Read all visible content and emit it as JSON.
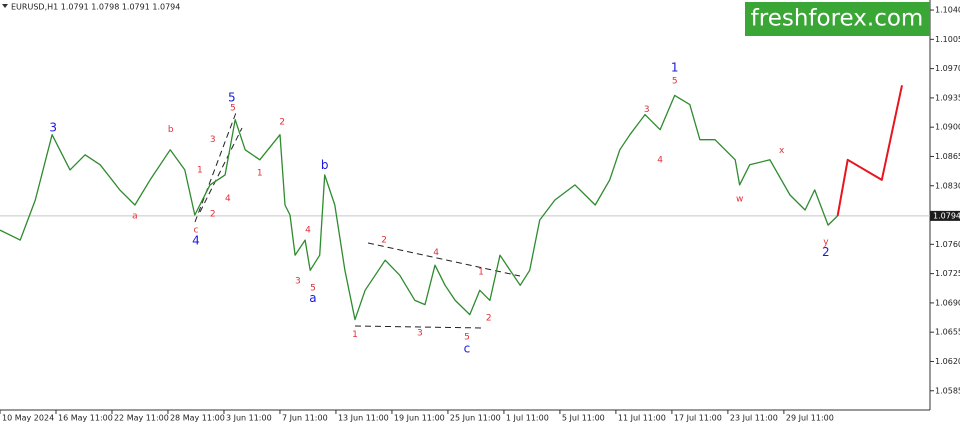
{
  "header": "EURUSD,H1  1.0791 1.0798 1.0791 1.0794",
  "logo": "freshforex.com",
  "chart_data": {
    "type": "line",
    "xlim": [
      0,
      16.61
    ],
    "ylim": [
      1.0562,
      1.1052
    ],
    "xticks": [
      {
        "value": 0,
        "label": "10 May 2024"
      },
      {
        "value": 1,
        "label": "16 May 11:00"
      },
      {
        "value": 2,
        "label": "22 May 11:00"
      },
      {
        "value": 3,
        "label": "28 May 11:00"
      },
      {
        "value": 4,
        "label": "3 Jun 11:00"
      },
      {
        "value": 5,
        "label": "7 Jun 11:00"
      },
      {
        "value": 6,
        "label": "13 Jun 11:00"
      },
      {
        "value": 7,
        "label": "19 Jun 11:00"
      },
      {
        "value": 8,
        "label": "25 Jun 11:00"
      },
      {
        "value": 9,
        "label": "1 Jul 11:00"
      },
      {
        "value": 10,
        "label": "5 Jul 11:00"
      },
      {
        "value": 11,
        "label": "11 Jul 11:00"
      },
      {
        "value": 12,
        "label": "17 Jul 11:00"
      },
      {
        "value": 13,
        "label": "23 Jul 11:00"
      },
      {
        "value": 14,
        "label": "29 Jul 11:00"
      }
    ],
    "yticks": [
      {
        "value": 1.104,
        "label": "1.1040"
      },
      {
        "value": 1.1005,
        "label": "1.1005"
      },
      {
        "value": 1.097,
        "label": "1.0970"
      },
      {
        "value": 1.0935,
        "label": "1.0935"
      },
      {
        "value": 1.09,
        "label": "1.0900"
      },
      {
        "value": 1.0865,
        "label": "1.0865"
      },
      {
        "value": 1.083,
        "label": "1.0830"
      },
      {
        "value": 1.076,
        "label": "1.0760"
      },
      {
        "value": 1.0725,
        "label": "1.0725"
      },
      {
        "value": 1.069,
        "label": "1.0690"
      },
      {
        "value": 1.0655,
        "label": "1.0655"
      },
      {
        "value": 1.062,
        "label": "1.0620"
      },
      {
        "value": 1.0585,
        "label": "1.0585"
      }
    ],
    "last": {
      "value": 1.0794,
      "label": "1.0794"
    },
    "series": [
      {
        "color": "#2e8b2e",
        "x": [
          0,
          0.36,
          0.63,
          0.93,
          1.25,
          1.52,
          1.79,
          2.14,
          2.41,
          2.68,
          3.04,
          3.3,
          3.48,
          3.75,
          4.02,
          4.2,
          4.38,
          4.64,
          5.0,
          5.09,
          5.18,
          5.27,
          5.45,
          5.54,
          5.71,
          5.8,
          5.98,
          6.16,
          6.34,
          6.52,
          6.88,
          7.14,
          7.41,
          7.59,
          7.77,
          7.95,
          8.13,
          8.39,
          8.57,
          8.75,
          8.93,
          9.11,
          9.29,
          9.46,
          9.64,
          9.91,
          10.27,
          10.63,
          10.89,
          11.07,
          11.25,
          11.52,
          11.79,
          12.05,
          12.32,
          12.5,
          12.77,
          13.13,
          13.21,
          13.39,
          13.75,
          14.11,
          14.38,
          14.55,
          14.79,
          14.96
        ],
        "values": [
          1.0777,
          1.0765,
          1.0813,
          1.0891,
          1.0849,
          1.0867,
          1.0855,
          1.0825,
          1.0807,
          1.0837,
          1.0873,
          1.0849,
          1.0795,
          1.0831,
          1.0843,
          1.0909,
          1.0873,
          1.0861,
          1.0891,
          1.0807,
          1.0795,
          1.0747,
          1.0765,
          1.0729,
          1.0747,
          1.0843,
          1.0807,
          1.0729,
          1.067,
          1.0705,
          1.0741,
          1.0723,
          1.0693,
          1.0688,
          1.0735,
          1.0711,
          1.0693,
          1.0676,
          1.0705,
          1.0693,
          1.0747,
          1.0729,
          1.0711,
          1.0729,
          1.0789,
          1.0813,
          1.0831,
          1.0807,
          1.0837,
          1.0873,
          1.0891,
          1.0915,
          1.0897,
          1.0938,
          1.0927,
          1.0885,
          1.0885,
          1.0861,
          1.0831,
          1.0855,
          1.0861,
          1.0819,
          1.0801,
          1.0825,
          1.0783,
          1.0794
        ]
      },
      {
        "color": "#e8141e",
        "x": [
          14.96,
          15.14,
          15.75,
          16.11
        ],
        "values": [
          1.0794,
          1.0861,
          1.0837,
          1.095
        ]
      }
    ],
    "annotations": [
      {
        "text": "3",
        "x": 0.95,
        "y": 1.0899,
        "color": "#1a1adc"
      },
      {
        "text": "b",
        "x": 3.05,
        "y": 1.0897,
        "color": "#e0303a"
      },
      {
        "text": "a",
        "x": 2.41,
        "y": 1.0794,
        "color": "#e0303a"
      },
      {
        "text": "5",
        "x": 4.14,
        "y": 1.0935,
        "color": "#1a1adc"
      },
      {
        "text": "5",
        "x": 4.16,
        "y": 1.0923,
        "color": "#e0303a"
      },
      {
        "text": "3",
        "x": 3.8,
        "y": 1.0885,
        "color": "#e0303a"
      },
      {
        "text": "1",
        "x": 3.57,
        "y": 1.0849,
        "color": "#e0303a"
      },
      {
        "text": "4",
        "x": 4.07,
        "y": 1.0815,
        "color": "#e0303a"
      },
      {
        "text": "2",
        "x": 3.8,
        "y": 1.0796,
        "color": "#e0303a"
      },
      {
        "text": "c",
        "x": 3.5,
        "y": 1.0777,
        "color": "#e0303a"
      },
      {
        "text": "4",
        "x": 3.5,
        "y": 1.0764,
        "color": "#1a1adc"
      },
      {
        "text": "2",
        "x": 5.04,
        "y": 1.0906,
        "color": "#e0303a"
      },
      {
        "text": "1",
        "x": 4.64,
        "y": 1.0845,
        "color": "#e0303a"
      },
      {
        "text": "b",
        "x": 5.8,
        "y": 1.0854,
        "color": "#1a1adc"
      },
      {
        "text": "4",
        "x": 5.5,
        "y": 1.0777,
        "color": "#e0303a"
      },
      {
        "text": "3",
        "x": 5.32,
        "y": 1.0716,
        "color": "#e0303a"
      },
      {
        "text": "5",
        "x": 5.59,
        "y": 1.0708,
        "color": "#e0303a"
      },
      {
        "text": "a",
        "x": 5.59,
        "y": 1.0695,
        "color": "#1a1adc"
      },
      {
        "text": "2",
        "x": 6.86,
        "y": 1.0765,
        "color": "#e0303a"
      },
      {
        "text": "1",
        "x": 6.34,
        "y": 1.0652,
        "color": "#e0303a"
      },
      {
        "text": "4",
        "x": 7.79,
        "y": 1.075,
        "color": "#e0303a"
      },
      {
        "text": "3",
        "x": 7.5,
        "y": 1.0654,
        "color": "#e0303a"
      },
      {
        "text": "1",
        "x": 8.59,
        "y": 1.0727,
        "color": "#e0303a"
      },
      {
        "text": "2",
        "x": 8.73,
        "y": 1.0672,
        "color": "#e0303a"
      },
      {
        "text": "5",
        "x": 8.34,
        "y": 1.0649,
        "color": "#e0303a"
      },
      {
        "text": "c",
        "x": 8.34,
        "y": 1.0635,
        "color": "#1a1adc"
      },
      {
        "text": "1",
        "x": 12.05,
        "y": 1.0971,
        "color": "#1a1adc"
      },
      {
        "text": "5",
        "x": 12.05,
        "y": 1.0955,
        "color": "#e0303a"
      },
      {
        "text": "3",
        "x": 11.55,
        "y": 1.0921,
        "color": "#e0303a"
      },
      {
        "text": "4",
        "x": 11.79,
        "y": 1.0861,
        "color": "#e0303a"
      },
      {
        "text": "w",
        "x": 13.21,
        "y": 1.0814,
        "color": "#e0303a"
      },
      {
        "text": "x",
        "x": 13.96,
        "y": 1.0872,
        "color": "#e0303a"
      },
      {
        "text": "y",
        "x": 14.75,
        "y": 1.0763,
        "color": "#e0303a"
      },
      {
        "text": "2",
        "x": 14.75,
        "y": 1.075,
        "color": "#1a1adc"
      }
    ]
  }
}
